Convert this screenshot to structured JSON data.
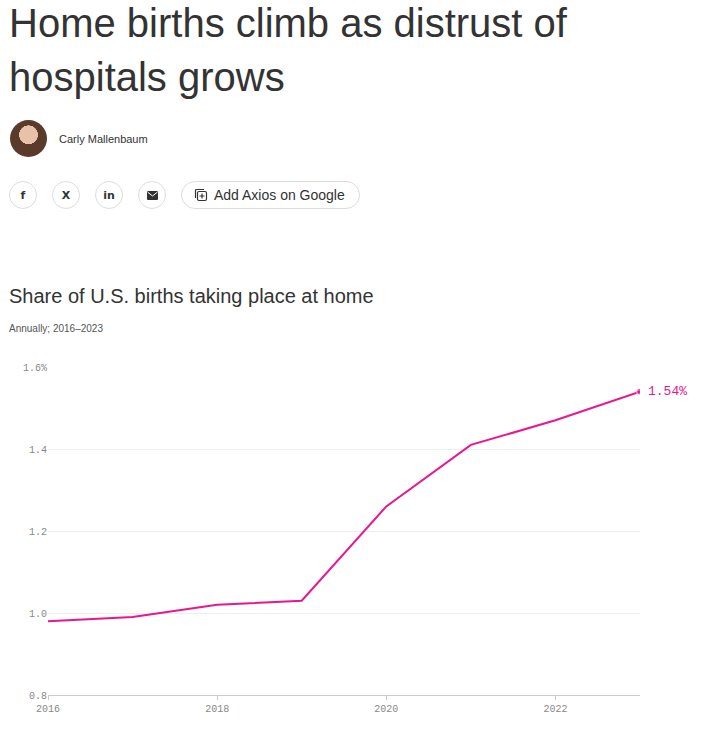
{
  "header": {
    "title": "Home births climb as distrust of hospitals grows",
    "author": "Carly Mallenbaum",
    "share_buttons": [
      "f",
      "X",
      "in"
    ],
    "button": "Add Axios on Google"
  },
  "chart_data": {
    "type": "line",
    "title": "Share of U.S. births taking place at home",
    "subtitle": "Annually; 2016–2023",
    "x": [
      2016,
      2017,
      2018,
      2019,
      2020,
      2021,
      2022,
      2023
    ],
    "values": [
      0.98,
      0.99,
      1.02,
      1.03,
      1.26,
      1.41,
      1.47,
      1.54
    ],
    "color": "#e8168f",
    "marker": "last",
    "xlim": [
      2016,
      2023
    ],
    "xticks": [
      2016,
      2018,
      2020,
      2022
    ],
    "ylim": [
      0.8,
      1.6
    ],
    "yticks": [
      0.8,
      {
        "value": 1.0,
        "label": "1.0"
      },
      1.2,
      1.4,
      {
        "value": 1.6,
        "label": "1.6%"
      }
    ],
    "grid": true,
    "annotations": [
      {
        "x": 2023,
        "y": 1.54,
        "text": "1.54%"
      }
    ]
  }
}
